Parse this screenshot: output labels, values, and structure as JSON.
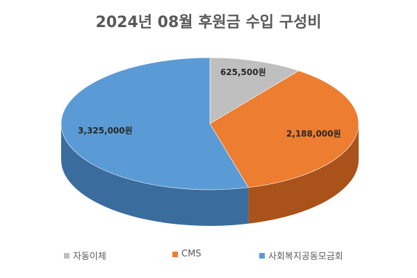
{
  "chart_data": {
    "type": "pie",
    "title": "2024년 08월 후원금 수입 구성비",
    "unit": "원",
    "slices": [
      {
        "label": "자동이체",
        "value": 625500,
        "display": "625,500원",
        "color": "#BFBFBF",
        "side_color": "#8F8F8F"
      },
      {
        "label": "CMS",
        "value": 2188000,
        "display": "2,188,000원",
        "color": "#ED7D31",
        "side_color": "#A9521A"
      },
      {
        "label": "사회복지공동모금회",
        "value": 3325000,
        "display": "3,325,000원",
        "color": "#5B9BD5",
        "side_color": "#3A6C9E"
      }
    ],
    "legend": {
      "position": "bottom"
    }
  }
}
